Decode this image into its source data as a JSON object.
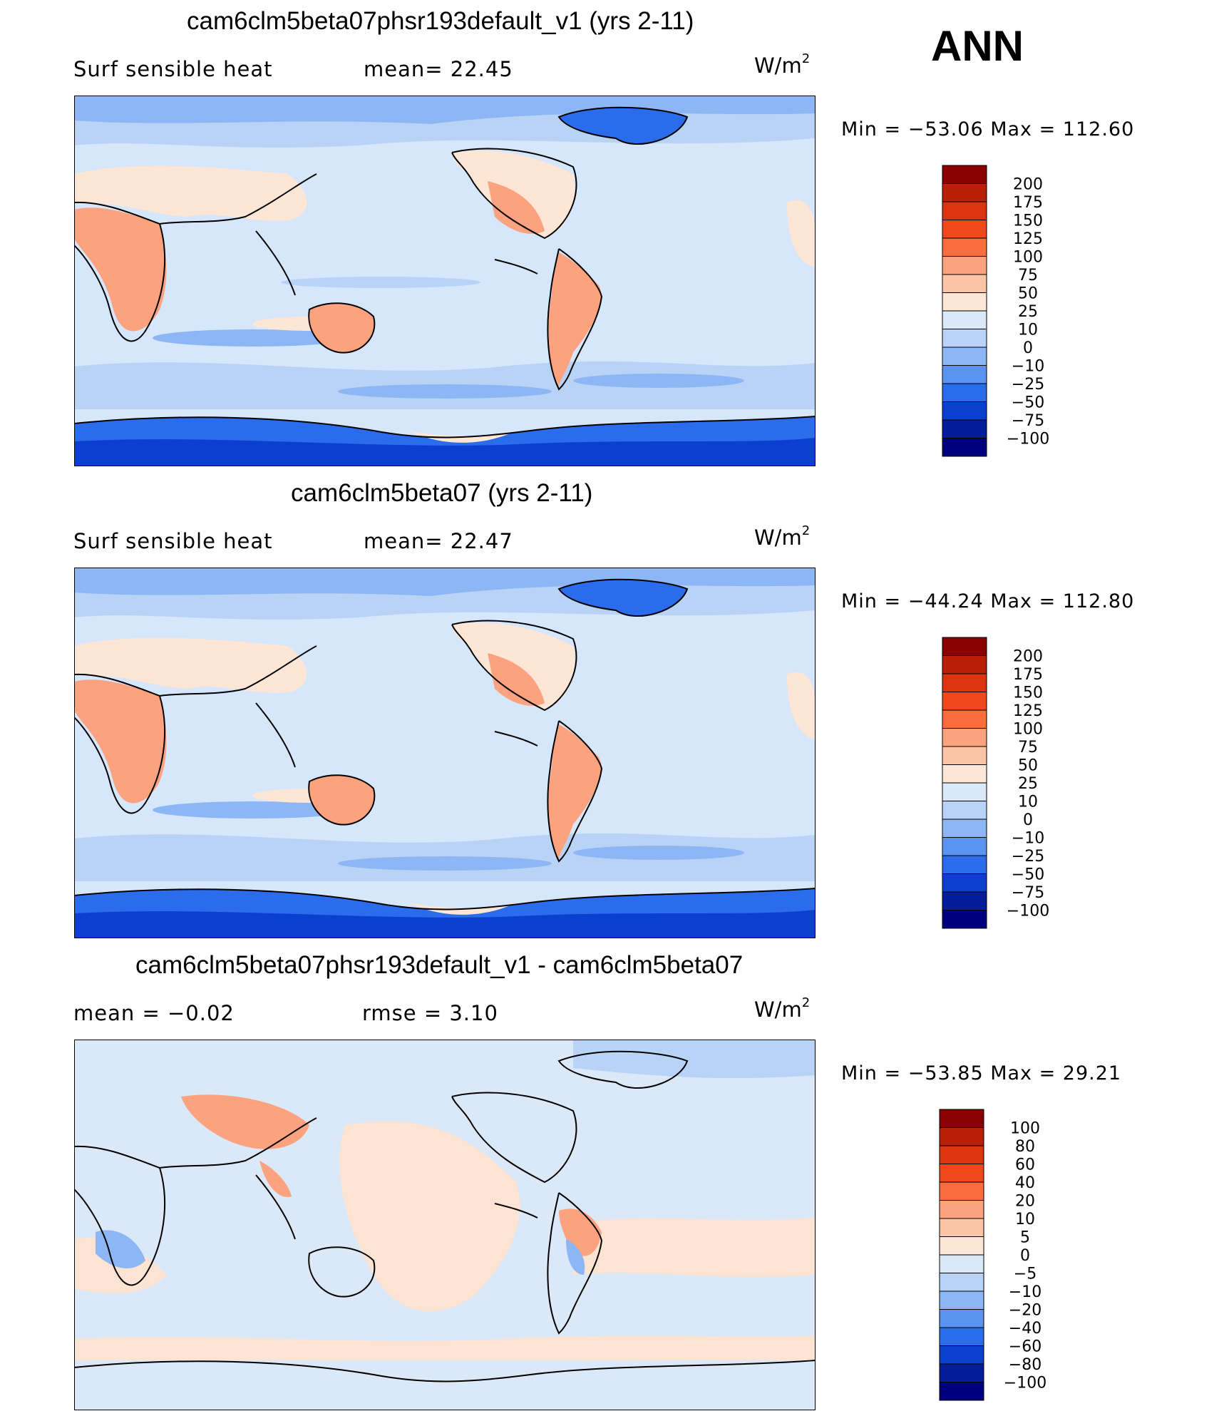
{
  "season": "ANN",
  "units_prefix": "W/m",
  "units_exp": "2",
  "panels": [
    {
      "title": "cam6clm5beta07phsr193default_v1 (yrs 2-11)",
      "left_label": "Surf  sensible  heat",
      "right_label": "mean=   22.45",
      "min_max": "Min  =  −53.06  Max  =  112.60",
      "colorbar": [
        "200",
        "175",
        "150",
        "125",
        "100",
        "75",
        "50",
        "25",
        "10",
        "0",
        "−10",
        "−25",
        "−50",
        "−75",
        "−100"
      ]
    },
    {
      "title": "cam6clm5beta07 (yrs 2-11)",
      "left_label": "Surf  sensible  heat",
      "right_label": "mean=   22.47",
      "min_max": "Min  =  −44.24  Max  =  112.80",
      "colorbar": [
        "200",
        "175",
        "150",
        "125",
        "100",
        "75",
        "50",
        "25",
        "10",
        "0",
        "−10",
        "−25",
        "−50",
        "−75",
        "−100"
      ]
    },
    {
      "title": "cam6clm5beta07phsr193default_v1 - cam6clm5beta07",
      "left_label": "mean  =    −0.02",
      "right_label": "rmse  =     3.10",
      "min_max": "Min  =  −53.85  Max  =   29.21",
      "colorbar": [
        "100",
        "80",
        "60",
        "40",
        "20",
        "10",
        "5",
        "0",
        "−5",
        "−10",
        "−20",
        "−40",
        "−60",
        "−80",
        "−100"
      ]
    }
  ],
  "colors": {
    "cbar": [
      "#8b0000",
      "#b82008",
      "#dc340f",
      "#f0481c",
      "#fa6d3c",
      "#fca27e",
      "#fcc5a8",
      "#fde6d6",
      "#dbe8f8",
      "#b9d3f7",
      "#8db6f4",
      "#5b94f0",
      "#2a6ceb",
      "#0a3fcf",
      "#051d9a",
      "#00007f"
    ],
    "ocean": "#d6e6fb",
    "land_warm": "#fca581",
    "land_light": "#fddcc6",
    "polar": "#2a5fe0",
    "polar_dark": "#1a48d0",
    "cool_band": "#9fc3f4",
    "diff_bg": "#dbe8f8",
    "diff_warm": "#fde3d2"
  }
}
